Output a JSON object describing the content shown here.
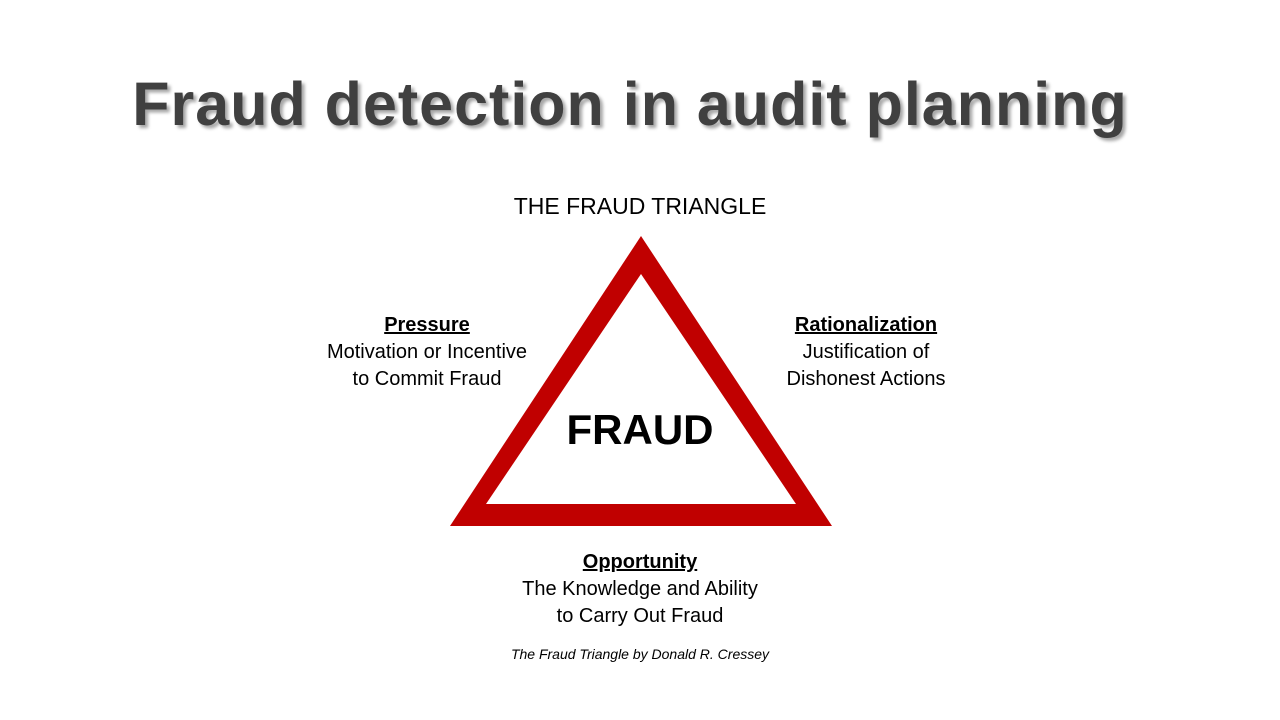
{
  "slide": {
    "title": "Fraud detection in audit planning"
  },
  "diagram": {
    "heading": "THE FRAUD TRIANGLE",
    "center_label": "FRAUD",
    "triangle_color": "#C00000",
    "pressure": {
      "heading": "Pressure",
      "line1": "Motivation or Incentive",
      "line2": "to Commit Fraud"
    },
    "rationalization": {
      "heading": "Rationalization",
      "line1": "Justification of",
      "line2": "Dishonest Actions"
    },
    "opportunity": {
      "heading": "Opportunity",
      "line1": "The Knowledge and Ability",
      "line2": "to Carry Out Fraud"
    },
    "citation": "The Fraud Triangle by Donald R. Cressey"
  }
}
